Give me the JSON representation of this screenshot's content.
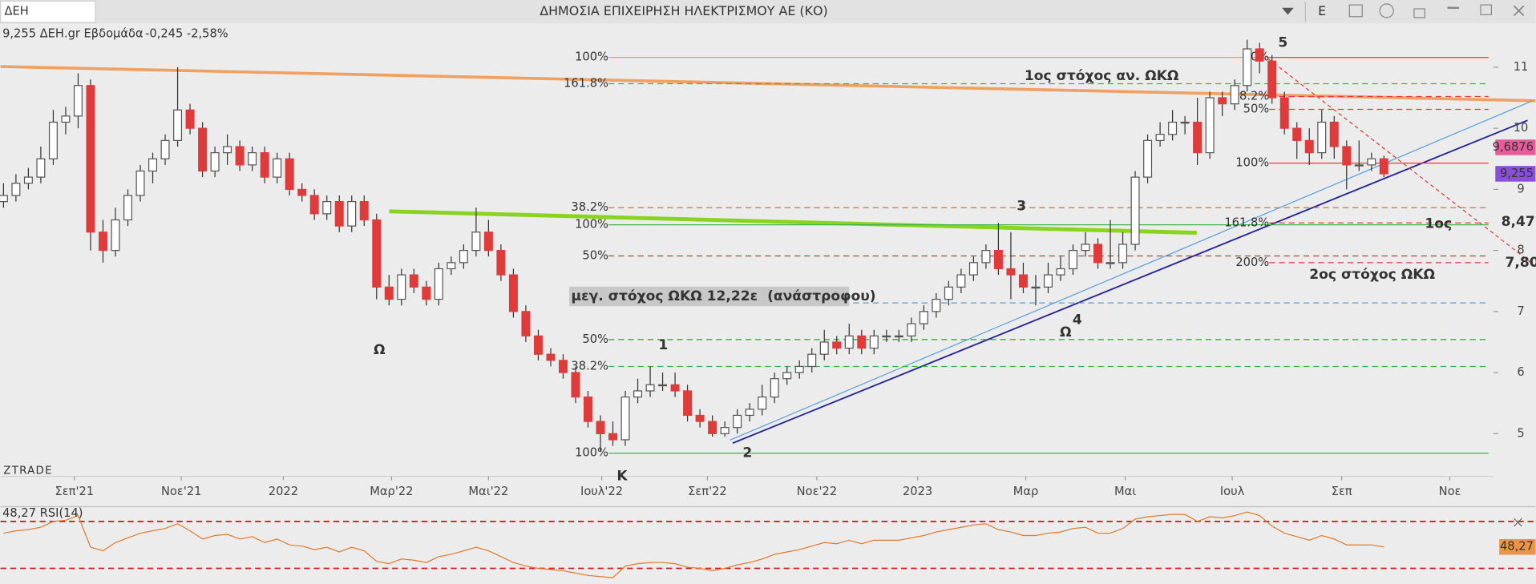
{
  "header": {
    "symbol": "ΔΕΗ",
    "title": "ΔΗΜΟΣΙΑ ΕΠΙΧΕΙΡΗΣΗ ΗΛΕΚΤΡΙΣΜΟΥ ΑΕ (ΚΟ)",
    "button": "E"
  },
  "chart_data": {
    "type": "candlestick",
    "info": {
      "symbol": "9,255 ΔΕΗ.gr Εβδομάδα",
      "change": "-0,245 -2,58%"
    },
    "colors": {
      "up": "#ffffff",
      "down": "#e03a3a",
      "wick": "#333333"
    },
    "ohlc": [
      [
        8.8,
        9.1,
        8.7,
        8.9
      ],
      [
        8.9,
        9.25,
        8.8,
        9.1
      ],
      [
        9.1,
        9.35,
        9.0,
        9.2
      ],
      [
        9.2,
        9.7,
        9.1,
        9.5
      ],
      [
        9.5,
        10.3,
        9.4,
        10.1
      ],
      [
        10.1,
        10.35,
        9.9,
        10.2
      ],
      [
        10.2,
        10.9,
        10.0,
        10.7
      ],
      [
        10.7,
        10.8,
        8.0,
        8.3
      ],
      [
        8.3,
        8.5,
        7.8,
        8.0
      ],
      [
        8.0,
        8.7,
        7.9,
        8.5
      ],
      [
        8.5,
        9.0,
        8.4,
        8.9
      ],
      [
        8.9,
        9.4,
        8.8,
        9.3
      ],
      [
        9.3,
        9.6,
        9.1,
        9.5
      ],
      [
        9.5,
        9.9,
        9.4,
        9.8
      ],
      [
        9.8,
        11.0,
        9.7,
        10.3
      ],
      [
        10.3,
        10.4,
        9.9,
        10.0
      ],
      [
        10.0,
        10.1,
        9.2,
        9.3
      ],
      [
        9.3,
        9.7,
        9.2,
        9.6
      ],
      [
        9.6,
        9.9,
        9.4,
        9.7
      ],
      [
        9.7,
        9.8,
        9.3,
        9.4
      ],
      [
        9.4,
        9.7,
        9.3,
        9.6
      ],
      [
        9.6,
        9.7,
        9.1,
        9.2
      ],
      [
        9.2,
        9.6,
        9.1,
        9.5
      ],
      [
        9.5,
        9.6,
        8.9,
        9.0
      ],
      [
        9.0,
        9.1,
        8.8,
        8.9
      ],
      [
        8.9,
        9.0,
        8.5,
        8.6
      ],
      [
        8.6,
        8.9,
        8.5,
        8.8
      ],
      [
        8.8,
        8.9,
        8.3,
        8.4
      ],
      [
        8.4,
        8.9,
        8.3,
        8.8
      ],
      [
        8.8,
        8.9,
        8.4,
        8.5
      ],
      [
        8.5,
        8.6,
        7.2,
        7.4
      ],
      [
        7.4,
        7.6,
        7.1,
        7.2
      ],
      [
        7.2,
        7.7,
        7.1,
        7.6
      ],
      [
        7.6,
        7.7,
        7.3,
        7.4
      ],
      [
        7.4,
        7.5,
        7.1,
        7.2
      ],
      [
        7.2,
        7.8,
        7.1,
        7.7
      ],
      [
        7.7,
        7.9,
        7.6,
        7.8
      ],
      [
        7.8,
        8.1,
        7.7,
        8.0
      ],
      [
        8.0,
        8.7,
        7.9,
        8.3
      ],
      [
        8.3,
        8.5,
        7.9,
        8.0
      ],
      [
        8.0,
        8.1,
        7.5,
        7.6
      ],
      [
        7.6,
        7.7,
        6.9,
        7.0
      ],
      [
        7.0,
        7.1,
        6.5,
        6.6
      ],
      [
        6.6,
        6.7,
        6.2,
        6.3
      ],
      [
        6.3,
        6.4,
        6.1,
        6.2
      ],
      [
        6.2,
        6.3,
        5.9,
        6.0
      ],
      [
        6.0,
        6.1,
        5.5,
        5.6
      ],
      [
        5.6,
        5.7,
        5.1,
        5.2
      ],
      [
        5.2,
        5.3,
        4.7,
        5.0
      ],
      [
        5.0,
        5.2,
        4.8,
        4.9
      ],
      [
        4.9,
        5.7,
        4.8,
        5.6
      ],
      [
        5.6,
        5.9,
        5.5,
        5.7
      ],
      [
        5.7,
        6.1,
        5.6,
        5.8
      ],
      [
        5.8,
        6.0,
        5.7,
        5.8
      ],
      [
        5.8,
        6.0,
        5.6,
        5.7
      ],
      [
        5.7,
        5.8,
        5.2,
        5.3
      ],
      [
        5.3,
        5.4,
        5.1,
        5.2
      ],
      [
        5.2,
        5.3,
        4.95,
        5.0
      ],
      [
        5.0,
        5.2,
        4.95,
        5.1
      ],
      [
        5.1,
        5.4,
        5.0,
        5.3
      ],
      [
        5.3,
        5.5,
        5.2,
        5.4
      ],
      [
        5.4,
        5.8,
        5.3,
        5.6
      ],
      [
        5.6,
        6.0,
        5.5,
        5.9
      ],
      [
        5.9,
        6.1,
        5.8,
        6.0
      ],
      [
        6.0,
        6.2,
        5.9,
        6.1
      ],
      [
        6.1,
        6.4,
        6.0,
        6.3
      ],
      [
        6.3,
        6.7,
        6.2,
        6.5
      ],
      [
        6.5,
        6.6,
        6.3,
        6.4
      ],
      [
        6.4,
        6.8,
        6.3,
        6.6
      ],
      [
        6.6,
        6.7,
        6.3,
        6.4
      ],
      [
        6.4,
        6.7,
        6.3,
        6.6
      ],
      [
        6.6,
        6.7,
        6.5,
        6.6
      ],
      [
        6.6,
        6.7,
        6.5,
        6.6
      ],
      [
        6.6,
        6.9,
        6.5,
        6.8
      ],
      [
        6.8,
        7.1,
        6.7,
        7.0
      ],
      [
        7.0,
        7.3,
        6.9,
        7.2
      ],
      [
        7.2,
        7.5,
        7.1,
        7.4
      ],
      [
        7.4,
        7.7,
        7.3,
        7.6
      ],
      [
        7.6,
        7.9,
        7.5,
        7.8
      ],
      [
        7.8,
        8.1,
        7.7,
        8.0
      ],
      [
        8.0,
        8.45,
        7.6,
        7.7
      ],
      [
        7.7,
        8.3,
        7.2,
        7.6
      ],
      [
        7.6,
        7.8,
        7.3,
        7.4
      ],
      [
        7.4,
        7.6,
        7.1,
        7.4
      ],
      [
        7.4,
        7.8,
        7.3,
        7.6
      ],
      [
        7.6,
        7.9,
        7.5,
        7.7
      ],
      [
        7.7,
        8.1,
        7.6,
        8.0
      ],
      [
        8.0,
        8.3,
        7.9,
        8.1
      ],
      [
        8.1,
        8.2,
        7.7,
        7.8
      ],
      [
        7.8,
        8.5,
        7.7,
        7.8
      ],
      [
        7.8,
        8.3,
        7.7,
        8.1
      ],
      [
        8.1,
        9.3,
        8.0,
        9.2
      ],
      [
        9.2,
        9.9,
        9.1,
        9.8
      ],
      [
        9.8,
        10.1,
        9.7,
        9.9
      ],
      [
        9.9,
        10.3,
        9.8,
        10.1
      ],
      [
        10.1,
        10.2,
        9.9,
        10.1
      ],
      [
        10.1,
        10.5,
        9.4,
        9.6
      ],
      [
        9.6,
        10.6,
        9.5,
        10.5
      ],
      [
        10.5,
        10.6,
        10.2,
        10.4
      ],
      [
        10.4,
        10.8,
        10.3,
        10.7
      ],
      [
        10.7,
        11.45,
        10.6,
        11.3
      ],
      [
        11.3,
        11.4,
        10.9,
        11.1
      ],
      [
        11.1,
        11.2,
        10.4,
        10.5
      ],
      [
        10.5,
        10.6,
        9.9,
        10.0
      ],
      [
        10.0,
        10.1,
        9.5,
        9.8
      ],
      [
        9.8,
        10.0,
        9.4,
        9.6
      ],
      [
        9.6,
        10.3,
        9.5,
        10.1
      ],
      [
        10.1,
        10.2,
        9.5,
        9.7
      ],
      [
        9.7,
        9.8,
        9.0,
        9.4
      ],
      [
        9.4,
        9.8,
        9.3,
        9.4
      ],
      [
        9.4,
        9.6,
        9.3,
        9.5
      ],
      [
        9.5,
        9.55,
        9.2,
        9.255
      ]
    ],
    "xlim": [
      -0.24,
      119.8
    ],
    "xticks": [
      {
        "value": 5.7,
        "label": "Σεπ'21"
      },
      {
        "value": 14.3,
        "label": "Νοε'21"
      },
      {
        "value": 22.5,
        "label": "2022"
      },
      {
        "value": 31.2,
        "label": "Μαρ'22"
      },
      {
        "value": 39,
        "label": "Μαι'22"
      },
      {
        "value": 48.1,
        "label": "Ιουλ'22"
      },
      {
        "value": 56.6,
        "label": "Σεπ'22"
      },
      {
        "value": 65.4,
        "label": "Νοε'22"
      },
      {
        "value": 73.5,
        "label": "2023"
      },
      {
        "value": 82.2,
        "label": "Μαρ"
      },
      {
        "value": 90.2,
        "label": "Μαι"
      },
      {
        "value": 98.8,
        "label": "Ιουλ"
      },
      {
        "value": 107.6,
        "label": "Σεπ"
      },
      {
        "value": 116.3,
        "label": "Νοε"
      }
    ],
    "ylim": [
      4.3,
      11.7
    ],
    "yticks": [
      5,
      6,
      7,
      8,
      9,
      10,
      11
    ],
    "fib_a": [
      {
        "value": 11.16,
        "label": "100%",
        "color": "#e8954a",
        "dash": false
      },
      {
        "value": 10.73,
        "label": "161.8%",
        "color": "#3cb44b",
        "dash": true
      },
      {
        "value": 8.7,
        "label": "38.2%",
        "color": "#c8783c",
        "dash": true
      },
      {
        "value": 8.42,
        "label": "100%",
        "color": "#3cb44b",
        "dash": false
      },
      {
        "value": 7.91,
        "label": "50%",
        "color": "#a0522d",
        "dash": true
      },
      {
        "value": 7.14,
        "color": "#5b9bd5",
        "dash": true
      },
      {
        "value": 6.54,
        "label": "50%",
        "color": "#2ca02c",
        "dash": true
      },
      {
        "value": 6.1,
        "label": "38.2%",
        "color": "#3cb44b",
        "dash": true
      },
      {
        "value": 4.68,
        "label": "100%",
        "color": "#3cb44b",
        "dash": false
      }
    ],
    "fib_b": [
      {
        "value": 11.16,
        "label": "0%",
        "color": "#e03a3a",
        "dash": false
      },
      {
        "value": 10.52,
        "label": "38.2%",
        "color": "#e03a3a",
        "dash": true
      },
      {
        "value": 10.31,
        "label": "50%",
        "color": "#e03a3a",
        "dash": true
      },
      {
        "value": 9.43,
        "label": "100%",
        "color": "#e03a3a",
        "dash": false
      },
      {
        "value": 8.45,
        "label": "161.8%",
        "color": "#e03a3a",
        "dash": true
      },
      {
        "value": 7.8,
        "label": "200%",
        "color": "#e03a3a",
        "dash": true
      }
    ],
    "targets": [
      {
        "value": 8.47,
        "label": "8,47"
      },
      {
        "value": 7.8,
        "label": "7,80"
      }
    ],
    "price_tags": [
      {
        "value": 9.6876,
        "label": "9,6876",
        "color": "#e85a9a"
      },
      {
        "value": 9.255,
        "label": "9,255",
        "color": "#8a4fd8"
      }
    ],
    "waves": [
      {
        "text": "5",
        "color": "#3a3ab8"
      },
      {
        "text": "3",
        "color": "#3a3ab8"
      },
      {
        "text": "1",
        "color": "#3a3ab8"
      },
      {
        "text": "2",
        "color": "#3a3ab8"
      },
      {
        "text": "4",
        "color": "#3a3ab8"
      },
      {
        "text": "Ω",
        "color": "#2ca02c"
      },
      {
        "text": "Ω",
        "color": "#2ca02c"
      },
      {
        "text": "Κ",
        "color": "#2ca02c"
      }
    ],
    "annotations": [
      {
        "text": "1ος στόχος αν. ΩΚΩ",
        "color": "#2ca02c"
      },
      {
        "text": "μεγ. στόχος ΩΚΩ 12,22ε  (ανάστροφου)",
        "color": "#111111"
      },
      {
        "text": "2ος στόχος ΩΚΩ",
        "color": "#e03a3a"
      },
      {
        "text": "1ος",
        "color": "#e03a3a"
      }
    ],
    "watermark": "ZTRADE",
    "rsi": {
      "label": "48,27 RSI(14)",
      "color": "#e07a2a",
      "ylim": [
        16.7,
        79.2
      ],
      "levels": [
        30,
        70
      ],
      "values": [
        60,
        62,
        63,
        65,
        70,
        71,
        75,
        48,
        45,
        52,
        56,
        60,
        62,
        64,
        68,
        62,
        55,
        58,
        59,
        55,
        57,
        52,
        55,
        50,
        49,
        46,
        48,
        44,
        48,
        45,
        36,
        34,
        38,
        37,
        35,
        40,
        42,
        45,
        48,
        45,
        40,
        35,
        32,
        30,
        29,
        28,
        26,
        24,
        23,
        22,
        32,
        34,
        35,
        35,
        34,
        31,
        30,
        28,
        30,
        33,
        35,
        38,
        42,
        44,
        46,
        49,
        52,
        51,
        54,
        51,
        54,
        54,
        54,
        56,
        58,
        61,
        63,
        65,
        67,
        68,
        63,
        61,
        58,
        58,
        60,
        61,
        64,
        65,
        60,
        60,
        64,
        72,
        74,
        75,
        76,
        76,
        70,
        74,
        73,
        75,
        78,
        75,
        66,
        60,
        57,
        54,
        58,
        55,
        50,
        50,
        50,
        48.27
      ],
      "value_label": "48,27"
    }
  }
}
